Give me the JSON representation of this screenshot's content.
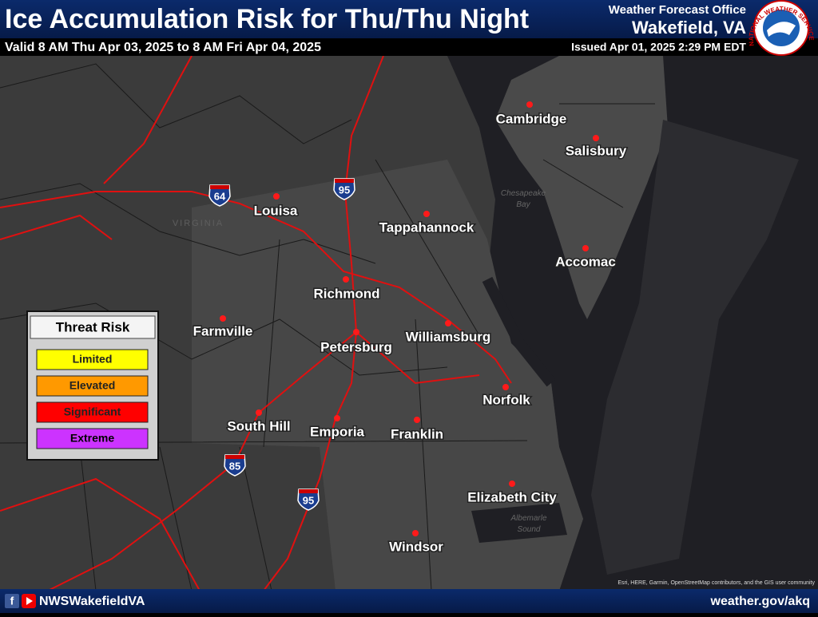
{
  "header": {
    "title": "Ice Accumulation Risk for Thu/Thu Night",
    "valid": "Valid 8 AM Thu Apr 03, 2025 to 8 AM Fri Apr 04, 2025",
    "office_label": "Weather Forecast Office",
    "office": "Wakefield, VA",
    "issued": "Issued Apr 01, 2025 2:29 PM EDT",
    "logo_text": "NATIONAL WEATHER SERVICE"
  },
  "map": {
    "region_labels": [
      "VIRGINIA"
    ],
    "water_labels": [
      [
        "Chesapeake",
        "Bay"
      ],
      [
        "Albemarle",
        "Sound"
      ]
    ],
    "cities": [
      "Cambridge",
      "Salisbury",
      "Louisa",
      "Tappahannock",
      "Accomac",
      "Richmond",
      "Farmville",
      "Williamsburg",
      "Petersburg",
      "Norfolk",
      "South Hill",
      "Emporia",
      "Franklin",
      "Elizabeth City",
      "Windsor"
    ],
    "interstates": [
      "64",
      "95",
      "85",
      "95"
    ],
    "attribution": "Esri, HERE, Garmin, OpenStreetMap contributors, and the GIS user community"
  },
  "legend": {
    "title": "Threat Risk",
    "levels": [
      {
        "label": "Limited",
        "color": "#ffff00"
      },
      {
        "label": "Elevated",
        "color": "#ff9900"
      },
      {
        "label": "Significant",
        "color": "#ff0000"
      },
      {
        "label": "Extreme",
        "color": "#cc33ff"
      }
    ]
  },
  "footer": {
    "social": "NWSWakefieldVA",
    "url": "weather.gov/akq"
  }
}
